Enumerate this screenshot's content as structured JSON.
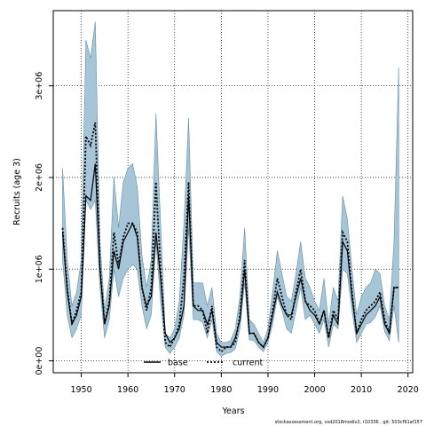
{
  "chart_data": {
    "type": "line",
    "xlabel": "Years",
    "ylabel": "Recruits (age 3)",
    "xlim": [
      1944,
      2021
    ],
    "ylim": [
      -130000,
      3820000
    ],
    "x_ticks": [
      {
        "value": 1950,
        "label": "1950"
      },
      {
        "value": 1960,
        "label": "1960"
      },
      {
        "value": 1970,
        "label": "1970"
      },
      {
        "value": 1980,
        "label": "1980"
      },
      {
        "value": 1990,
        "label": "1990"
      },
      {
        "value": 2000,
        "label": "2000"
      },
      {
        "value": 2010,
        "label": "2010"
      },
      {
        "value": 2020,
        "label": "2020"
      }
    ],
    "y_ticks": [
      {
        "value": 0,
        "label": "0e+00"
      },
      {
        "value": 1000000,
        "label": "1e+06"
      },
      {
        "value": 2000000,
        "label": "2e+06"
      },
      {
        "value": 3000000,
        "label": "3e+06"
      }
    ],
    "grid": true,
    "legend_position": "bottom-center",
    "colors": {
      "band_fill": "#a6c6d8",
      "band_edge": "#5f8ea8",
      "line": "#000000",
      "axis": "#000000"
    },
    "x": [
      1946,
      1947,
      1948,
      1949,
      1950,
      1951,
      1952,
      1953,
      1954,
      1955,
      1956,
      1957,
      1958,
      1959,
      1960,
      1961,
      1962,
      1963,
      1964,
      1965,
      1966,
      1967,
      1968,
      1969,
      1970,
      1971,
      1972,
      1973,
      1974,
      1975,
      1976,
      1977,
      1978,
      1979,
      1980,
      1981,
      1982,
      1983,
      1984,
      1985,
      1986,
      1987,
      1988,
      1989,
      1990,
      1991,
      1992,
      1993,
      1994,
      1995,
      1996,
      1997,
      1998,
      1999,
      2000,
      2001,
      2002,
      2003,
      2004,
      2005,
      2006,
      2007,
      2008,
      2009,
      2010,
      2011,
      2012,
      2013,
      2014,
      2015,
      2016,
      2017,
      2018
    ],
    "series": [
      {
        "name": "base",
        "style": "solid",
        "values": [
          1400000,
          750000,
          400000,
          500000,
          700000,
          1800000,
          1750000,
          2150000,
          1000000,
          400000,
          600000,
          1200000,
          1000000,
          1300000,
          1400000,
          1500000,
          1350000,
          800000,
          600000,
          700000,
          1400000,
          900000,
          300000,
          200000,
          250000,
          350000,
          600000,
          1800000,
          600000,
          550000,
          550000,
          400000,
          550000,
          200000,
          150000,
          150000,
          150000,
          250000,
          450000,
          1000000,
          300000,
          300000,
          200000,
          150000,
          250000,
          500000,
          750000,
          600000,
          500000,
          500000,
          700000,
          900000,
          650000,
          550000,
          500000,
          400000,
          550000,
          250000,
          500000,
          400000,
          1300000,
          1200000,
          700000,
          300000,
          400000,
          500000,
          550000,
          600000,
          700000,
          400000,
          300000,
          800000,
          800000
        ]
      },
      {
        "name": "current",
        "style": "dotted",
        "values": [
          1450000,
          800000,
          400000,
          550000,
          750000,
          2450000,
          2350000,
          2600000,
          1050000,
          400000,
          650000,
          1400000,
          1050000,
          1350000,
          1500000,
          1500000,
          1400000,
          800000,
          550000,
          800000,
          1950000,
          1000000,
          200000,
          150000,
          250000,
          400000,
          900000,
          1950000,
          600000,
          600000,
          550000,
          300000,
          600000,
          150000,
          100000,
          150000,
          150000,
          200000,
          500000,
          1100000,
          300000,
          300000,
          200000,
          150000,
          250000,
          550000,
          900000,
          700000,
          500000,
          450000,
          750000,
          1000000,
          650000,
          600000,
          550000,
          400000,
          550000,
          250000,
          550000,
          450000,
          1400000,
          1300000,
          750000,
          300000,
          450000,
          550000,
          600000,
          650000,
          750000,
          450000,
          300000,
          800000,
          800000
        ]
      }
    ],
    "band": {
      "name": "uncertainty",
      "lower": [
        1100000,
        500000,
        250000,
        350000,
        500000,
        1750000,
        1650000,
        1750000,
        800000,
        250000,
        450000,
        1000000,
        700000,
        900000,
        1000000,
        1050000,
        1000000,
        600000,
        350000,
        500000,
        1300000,
        650000,
        150000,
        80000,
        150000,
        250000,
        500000,
        1450000,
        450000,
        450000,
        420000,
        250000,
        450000,
        100000,
        50000,
        80000,
        90000,
        130000,
        350000,
        850000,
        230000,
        220000,
        150000,
        100000,
        200000,
        400000,
        700000,
        550000,
        350000,
        300000,
        550000,
        800000,
        450000,
        500000,
        400000,
        300000,
        450000,
        150000,
        400000,
        350000,
        1000000,
        950000,
        550000,
        200000,
        300000,
        400000,
        420000,
        480000,
        600000,
        320000,
        220000,
        600000,
        200000
      ],
      "upper": [
        2100000,
        1100000,
        600000,
        750000,
        1100000,
        3500000,
        3300000,
        3700000,
        1300000,
        550000,
        900000,
        2000000,
        1450000,
        1950000,
        2100000,
        2150000,
        1900000,
        1150000,
        800000,
        1100000,
        2700000,
        1500000,
        300000,
        250000,
        350000,
        650000,
        1500000,
        2650000,
        850000,
        850000,
        850000,
        600000,
        800000,
        300000,
        200000,
        200000,
        220000,
        350000,
        700000,
        1450000,
        450000,
        400000,
        300000,
        200000,
        350000,
        750000,
        1200000,
        950000,
        700000,
        650000,
        950000,
        1300000,
        900000,
        800000,
        650000,
        550000,
        900000,
        400000,
        800000,
        650000,
        1800000,
        1550000,
        1000000,
        500000,
        700000,
        800000,
        850000,
        1000000,
        950000,
        600000,
        450000,
        1300000,
        3200000
      ]
    }
  },
  "legend": [
    {
      "label": "base",
      "style": "solid"
    },
    {
      "label": "current",
      "style": "dotted"
    }
  ],
  "footnote": "stockassessment.org, vsd2018modiv2, r10336 , git: 503cf91af157"
}
